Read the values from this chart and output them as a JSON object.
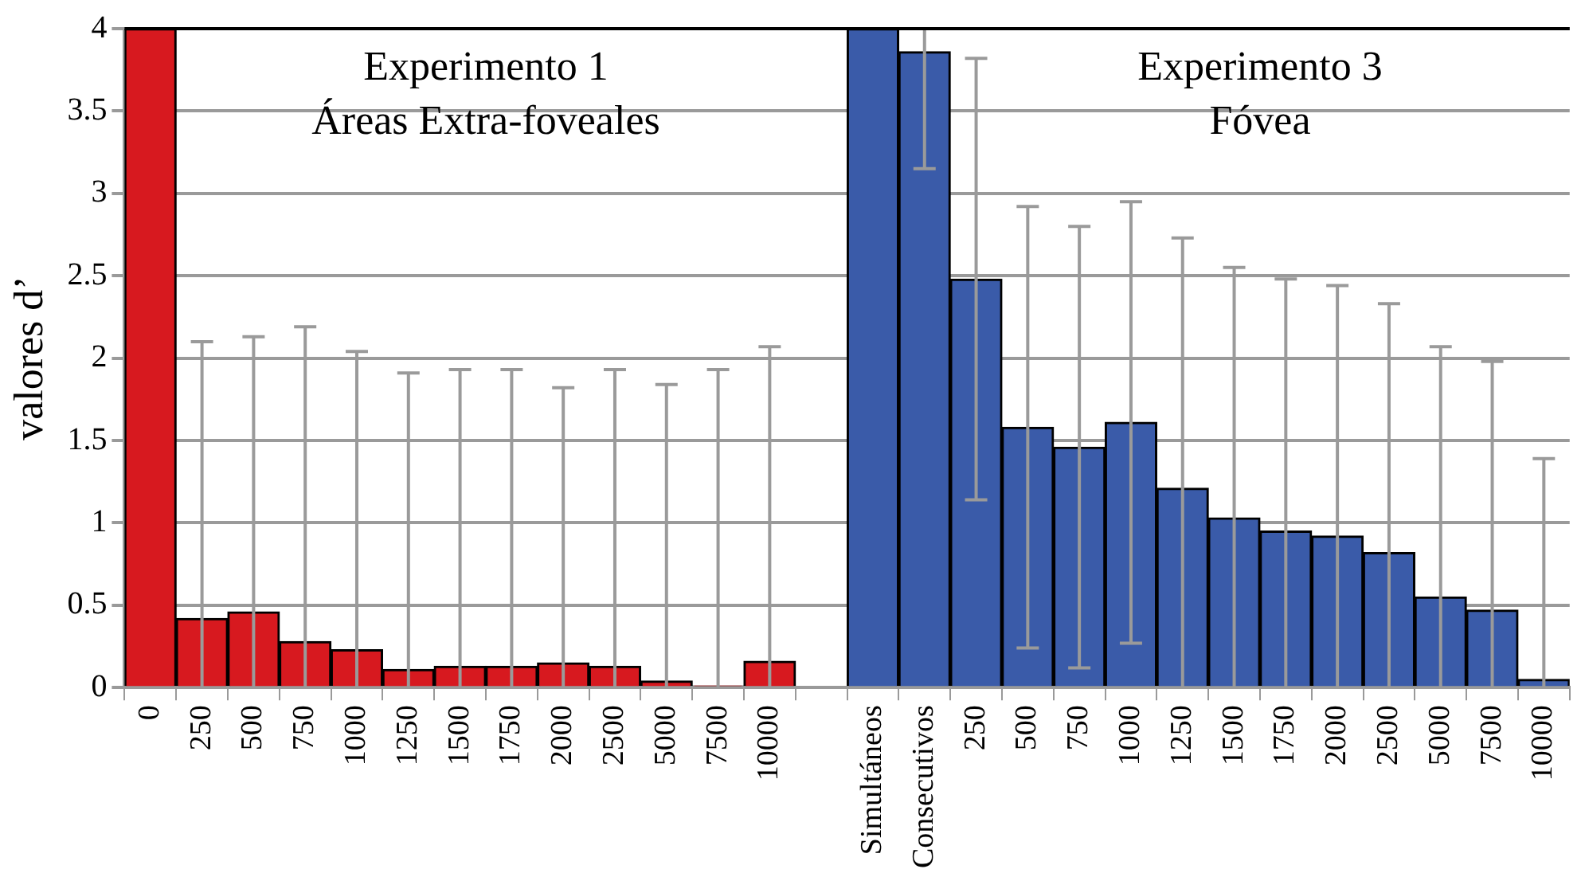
{
  "chart_data": {
    "type": "bar",
    "ylabel": "valores d’",
    "annotations": [
      "Experimento 1\nÁreas Extra-foveales",
      "Experimento 3\nFóvea"
    ],
    "categories": [
      "0",
      "250",
      "500",
      "750",
      "1000",
      "1250",
      "1500",
      "1750",
      "2000",
      "2500",
      "5000",
      "7500",
      "10000",
      null,
      "Simultáneos",
      "Consecutivos",
      "250",
      "500",
      "750",
      "1000",
      "1250",
      "1500",
      "1750",
      "2000",
      "2500",
      "5000",
      "7500",
      "10000"
    ],
    "values": [
      4,
      0.42,
      0.46,
      0.28,
      0.23,
      0.11,
      0.13,
      0.13,
      0.15,
      0.13,
      0.04,
      0.01,
      0.16,
      null,
      4,
      3.86,
      2.48,
      1.58,
      1.46,
      1.61,
      1.21,
      1.03,
      0.95,
      0.92,
      0.82,
      0.55,
      0.47,
      0.05
    ],
    "errors": [
      null,
      [
        0,
        2.1
      ],
      [
        0,
        2.13
      ],
      [
        0,
        2.19
      ],
      [
        0,
        2.04
      ],
      [
        0,
        1.91
      ],
      [
        0,
        1.93
      ],
      [
        0,
        1.93
      ],
      [
        0,
        1.82
      ],
      [
        0,
        1.93
      ],
      [
        0,
        1.84
      ],
      [
        0,
        1.93
      ],
      [
        0,
        2.07
      ],
      null,
      null,
      [
        3.15,
        4
      ],
      1.34,
      1.34,
      1.34,
      1.34,
      [
        0,
        2.73
      ],
      [
        0,
        2.55
      ],
      [
        0,
        2.48
      ],
      [
        0,
        2.44
      ],
      [
        0,
        2.33
      ],
      [
        0,
        2.07
      ],
      [
        0,
        1.98
      ],
      [
        0,
        1.39
      ]
    ],
    "colors": [
      "#d7191f",
      "#d7191f",
      "#d7191f",
      "#d7191f",
      "#d7191f",
      "#d7191f",
      "#d7191f",
      "#d7191f",
      "#d7191f",
      "#d7191f",
      "#d7191f",
      "#d7191f",
      "#d7191f",
      null,
      "#3a5ba9",
      "#3a5ba9",
      "#3a5ba9",
      "#3a5ba9",
      "#3a5ba9",
      "#3a5ba9",
      "#3a5ba9",
      "#3a5ba9",
      "#3a5ba9",
      "#3a5ba9",
      "#3a5ba9",
      "#3a5ba9",
      "#3a5ba9",
      "#3a5ba9"
    ],
    "ylim": [
      0,
      4
    ],
    "yticks": [
      0,
      0.5,
      1,
      1.5,
      2,
      2.5,
      3,
      3.5,
      4
    ],
    "grid": "y",
    "legend": false
  }
}
